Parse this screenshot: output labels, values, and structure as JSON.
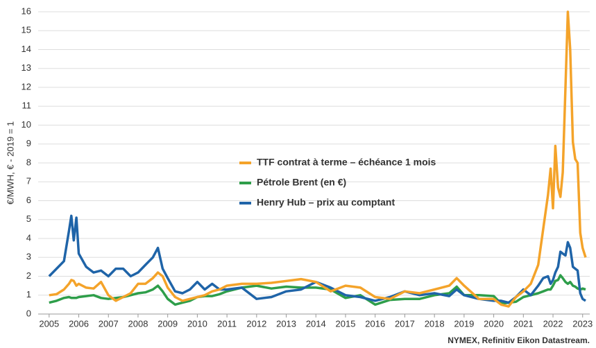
{
  "chart_data": {
    "type": "line",
    "y_label": "€/MWH, € - 2019 = 1",
    "source": "NYMEX, Refinitiv Eikon Datastream.",
    "x": [
      2005.0,
      2005.25,
      2005.5,
      2005.67,
      2005.75,
      2005.83,
      2005.92,
      2006.0,
      2006.25,
      2006.5,
      2006.75,
      2007.0,
      2007.25,
      2007.5,
      2007.75,
      2008.0,
      2008.25,
      2008.5,
      2008.67,
      2008.83,
      2009.0,
      2009.25,
      2009.5,
      2009.75,
      2010.0,
      2010.25,
      2010.5,
      2010.75,
      2011.0,
      2011.5,
      2012.0,
      2012.5,
      2013.0,
      2013.5,
      2014.0,
      2014.5,
      2015.0,
      2015.5,
      2016.0,
      2016.5,
      2017.0,
      2017.5,
      2018.0,
      2018.5,
      2018.75,
      2019.0,
      2019.5,
      2020.0,
      2020.25,
      2020.5,
      2020.75,
      2021.0,
      2021.25,
      2021.5,
      2021.67,
      2021.83,
      2021.92,
      2022.0,
      2022.08,
      2022.17,
      2022.25,
      2022.33,
      2022.42,
      2022.5,
      2022.58,
      2022.67,
      2022.75,
      2022.83,
      2022.92,
      2023.0,
      2023.1
    ],
    "series": [
      {
        "name": "TTF contrat à terme – échéance 1 mois",
        "color": "#f4a32a",
        "values": [
          1.0,
          1.05,
          1.3,
          1.6,
          1.8,
          1.75,
          1.5,
          1.6,
          1.4,
          1.35,
          1.7,
          1.0,
          0.7,
          0.9,
          1.1,
          1.6,
          1.6,
          1.9,
          2.2,
          2.0,
          1.4,
          0.9,
          0.7,
          0.8,
          0.9,
          1.0,
          1.2,
          1.3,
          1.5,
          1.6,
          1.6,
          1.65,
          1.75,
          1.85,
          1.7,
          1.2,
          1.5,
          1.4,
          0.9,
          0.8,
          1.2,
          1.1,
          1.3,
          1.5,
          1.9,
          1.5,
          0.8,
          0.8,
          0.5,
          0.4,
          0.9,
          1.2,
          1.6,
          2.6,
          4.5,
          6.3,
          7.7,
          5.6,
          8.9,
          6.7,
          6.2,
          7.5,
          12.0,
          16.0,
          14.0,
          9.1,
          8.2,
          8.0,
          4.3,
          3.5,
          3.0
        ]
      },
      {
        "name": "Pétrole Brent (en €)",
        "color": "#2e9e4a",
        "values": [
          0.6,
          0.7,
          0.85,
          0.9,
          0.85,
          0.85,
          0.85,
          0.9,
          0.95,
          1.0,
          0.85,
          0.8,
          0.85,
          0.9,
          1.0,
          1.1,
          1.15,
          1.3,
          1.5,
          1.2,
          0.8,
          0.5,
          0.6,
          0.7,
          0.9,
          0.95,
          0.95,
          1.05,
          1.2,
          1.4,
          1.5,
          1.35,
          1.45,
          1.4,
          1.4,
          1.3,
          0.85,
          1.0,
          0.5,
          0.75,
          0.8,
          0.8,
          1.0,
          1.1,
          1.45,
          1.0,
          1.0,
          0.95,
          0.55,
          0.6,
          0.65,
          0.9,
          1.0,
          1.1,
          1.2,
          1.3,
          1.3,
          1.5,
          1.75,
          1.8,
          2.05,
          1.9,
          1.7,
          1.6,
          1.7,
          1.5,
          1.45,
          1.35,
          1.3,
          1.35,
          1.3
        ]
      },
      {
        "name": "Henry Hub – prix au comptant",
        "color": "#1f64a8",
        "values": [
          2.0,
          2.4,
          2.8,
          4.4,
          5.2,
          3.9,
          5.1,
          3.2,
          2.5,
          2.2,
          2.3,
          2.0,
          2.4,
          2.4,
          2.0,
          2.2,
          2.6,
          3.0,
          3.5,
          2.4,
          1.9,
          1.2,
          1.1,
          1.3,
          1.7,
          1.3,
          1.6,
          1.3,
          1.3,
          1.4,
          0.8,
          0.9,
          1.2,
          1.3,
          1.7,
          1.4,
          1.0,
          0.9,
          0.7,
          0.9,
          1.2,
          1.0,
          1.1,
          0.95,
          1.3,
          1.0,
          0.8,
          0.7,
          0.7,
          0.6,
          0.9,
          1.3,
          1.0,
          1.5,
          1.9,
          2.0,
          1.6,
          1.8,
          2.2,
          2.5,
          3.3,
          3.2,
          3.1,
          3.8,
          3.5,
          2.5,
          2.4,
          2.3,
          1.1,
          0.8,
          0.7
        ]
      }
    ],
    "xlim": [
      2004.63,
      2023.24
    ],
    "xticks": [
      2005,
      2006,
      2007,
      2008,
      2009,
      2010,
      2011,
      2012,
      2013,
      2014,
      2015,
      2016,
      2017,
      2018,
      2019,
      2020,
      2021,
      2022,
      2023
    ],
    "ylim": [
      0,
      16
    ],
    "yticks": [
      0,
      1,
      2,
      3,
      4,
      5,
      6,
      7,
      8,
      9,
      10,
      11,
      12,
      13,
      14,
      15,
      16
    ],
    "grid": true
  }
}
